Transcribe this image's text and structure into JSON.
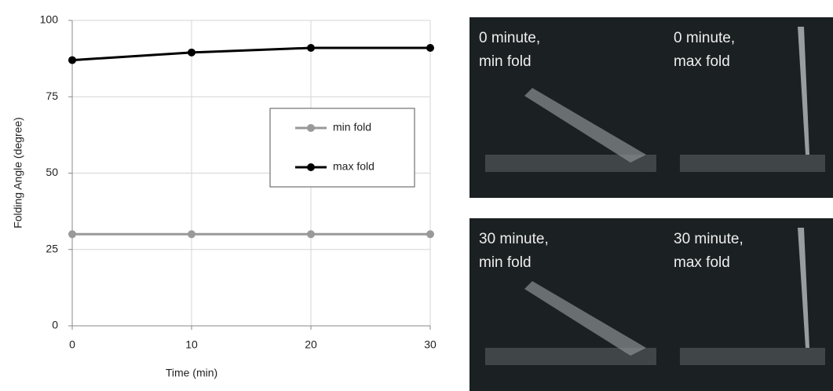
{
  "chart_data": {
    "type": "line",
    "x": [
      0,
      10,
      20,
      30
    ],
    "xlim": [
      0,
      30
    ],
    "xticks": [
      0,
      10,
      20,
      30
    ],
    "ylim": [
      0,
      100
    ],
    "yticks": [
      0,
      25,
      50,
      75,
      100
    ],
    "xlabel": "Time (min)",
    "ylabel": "Folding Angle (degree)",
    "grid": true,
    "series": [
      {
        "name": "min fold",
        "color": "#999999",
        "values": [
          30,
          30,
          30,
          30
        ]
      },
      {
        "name": "max fold",
        "color": "#000000",
        "values": [
          87,
          89.5,
          91,
          91
        ]
      }
    ]
  },
  "images": [
    {
      "line1": "0 minute,",
      "line2": "min fold"
    },
    {
      "line1": "0 minute,",
      "line2": "max fold"
    },
    {
      "line1": "30 minute,",
      "line2": "min fold"
    },
    {
      "line1": "30 minute,",
      "line2": "max fold"
    }
  ]
}
